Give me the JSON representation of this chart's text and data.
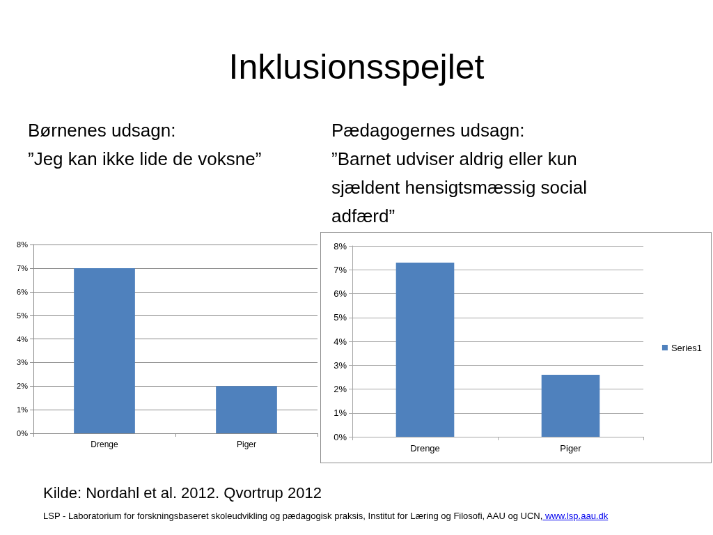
{
  "chart_data": [
    {
      "type": "bar",
      "title": "Børnenes udsagn:",
      "subtitle": "”Jeg kan ikke lide de voksne”",
      "annotations": [
        "Inklusionsspejlet"
      ],
      "categories": [
        "Drenge",
        "Piger"
      ],
      "values": [
        7,
        2
      ],
      "color": "#4f81bd",
      "ylim": [
        0,
        8
      ],
      "yticks": [
        {
          "value": 0,
          "label": "0%"
        },
        {
          "value": 1,
          "label": "1%"
        },
        {
          "value": 2,
          "label": "2%"
        },
        {
          "value": 3,
          "label": "3%"
        },
        {
          "value": 4,
          "label": "4%"
        },
        {
          "value": 5,
          "label": "5%"
        },
        {
          "value": 6,
          "label": "6%"
        },
        {
          "value": 7,
          "label": "7%"
        },
        {
          "value": 8,
          "label": "8%"
        }
      ],
      "grid": "y"
    },
    {
      "type": "bar",
      "title": "Pædagogernes udsagn:",
      "subtitle": "”Barnet udviser aldrig eller kun sjældent hensigtsmæssig social adfærd”",
      "annotations": [
        "Kilde: Nordahl et al. 2012. Qvortrup 2012",
        "LSP - Laboratorium for forskningsbaseret skoleudvikling og pædagogisk praksis, Institut for Læring og Filosofi, AAU og UCN,",
        "www.lsp.aau.dk"
      ],
      "categories": [
        "Drenge",
        "Piger"
      ],
      "series": [
        {
          "name": "Series1",
          "color": "#4f81bd",
          "values": [
            7.3,
            2.6
          ]
        }
      ],
      "ylim": [
        0,
        8
      ],
      "yticks": [
        {
          "value": 0,
          "label": "0%"
        },
        {
          "value": 1,
          "label": "1%"
        },
        {
          "value": 2,
          "label": "2%"
        },
        {
          "value": 3,
          "label": "3%"
        },
        {
          "value": 4,
          "label": "4%"
        },
        {
          "value": 5,
          "label": "5%"
        },
        {
          "value": 6,
          "label": "6%"
        },
        {
          "value": 7,
          "label": "7%"
        },
        {
          "value": 8,
          "label": "8%"
        }
      ],
      "grid": "y",
      "legend": "right"
    }
  ]
}
